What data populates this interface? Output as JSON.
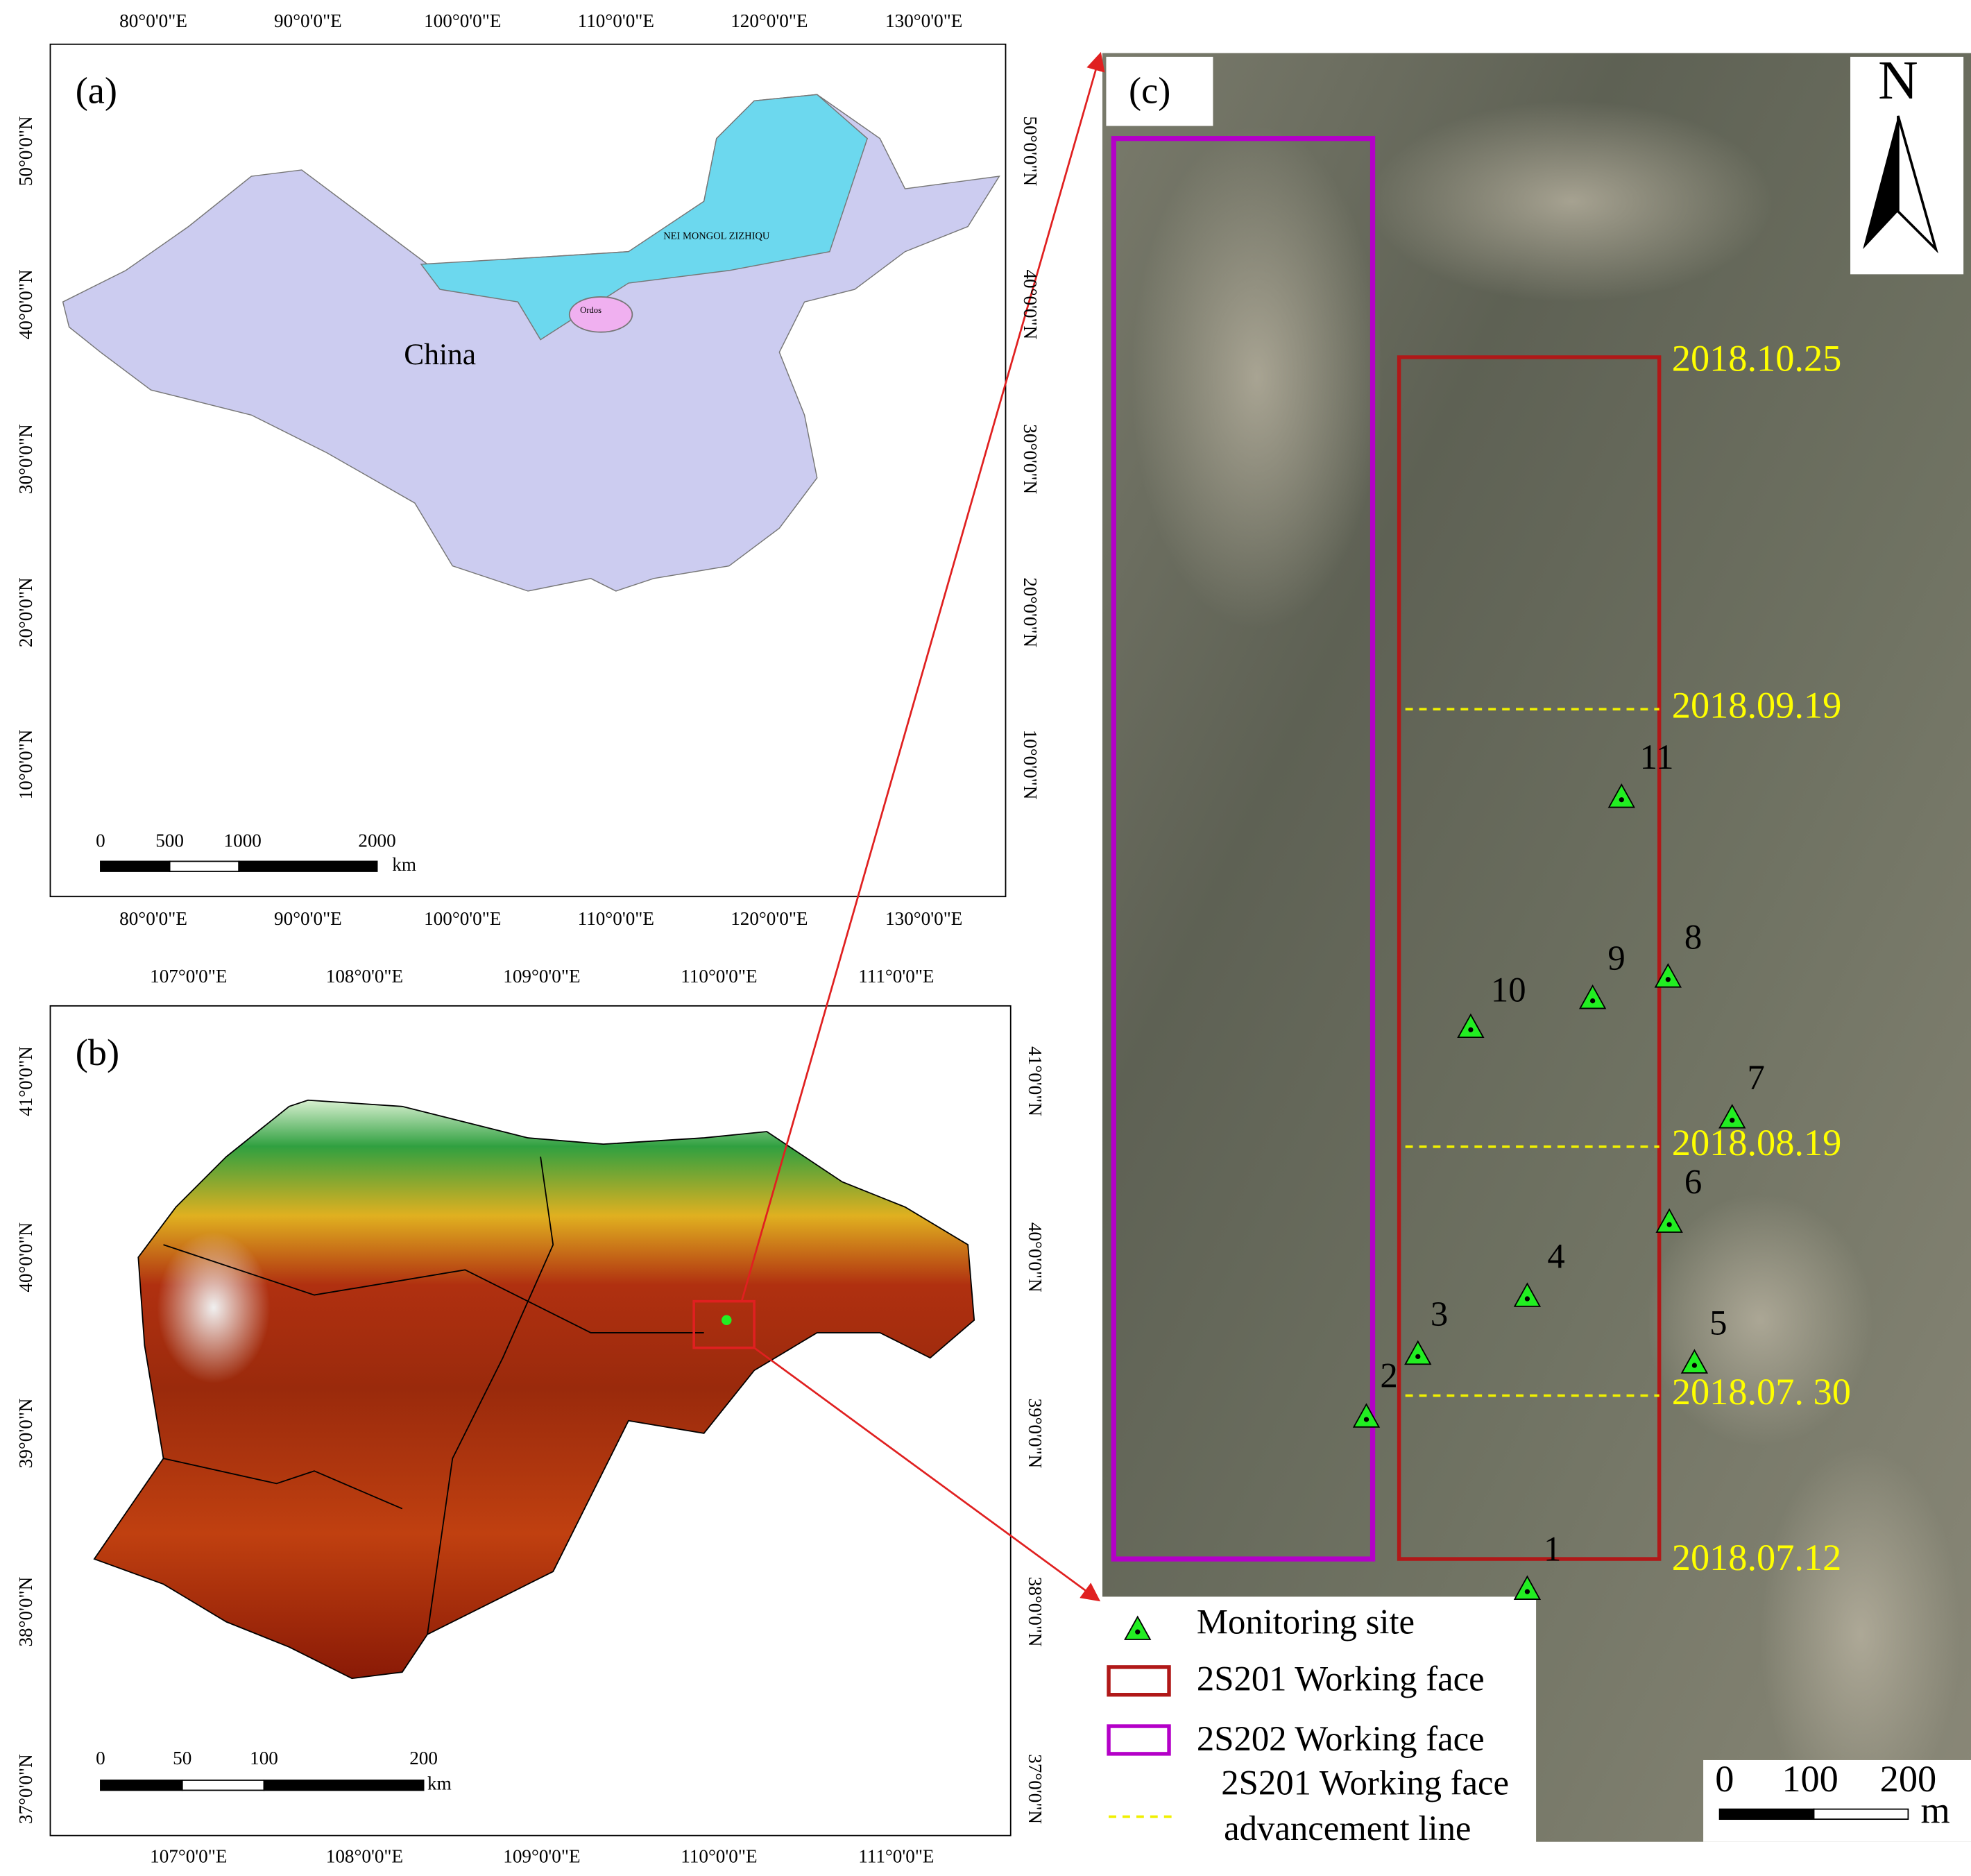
{
  "panel_a": {
    "label": "(a)",
    "lon_labels": [
      "80°0'0\"E",
      "90°0'0\"E",
      "100°0'0\"E",
      "110°0'0\"E",
      "120°0'0\"E",
      "130°0'0\"E"
    ],
    "lat_labels": [
      "50°0'0\"N",
      "40°0'0\"N",
      "30°0'0\"N",
      "20°0'0\"N",
      "10°0'0\"N"
    ],
    "places": {
      "country": "China",
      "region": "NEI MONGOL ZIZHIQU",
      "city": "Ordos"
    },
    "scale_bar": {
      "labels": [
        "0",
        "500",
        "1000",
        "2000"
      ],
      "unit": "km"
    }
  },
  "panel_b": {
    "label": "(b)",
    "lon_labels": [
      "107°0'0\"E",
      "108°0'0\"E",
      "109°0'0\"E",
      "110°0'0\"E",
      "111°0'0\"E"
    ],
    "lat_labels": [
      "41°0'0\"N",
      "40°0'0\"N",
      "39°0'0\"N",
      "38°0'0\"N",
      "37°0'0\"N"
    ],
    "scale_bar": {
      "labels": [
        "0",
        "50",
        "100",
        "200"
      ],
      "unit": "km"
    }
  },
  "panel_c": {
    "label": "(c)",
    "north": "N",
    "sites": [
      "1",
      "2",
      "3",
      "4",
      "5",
      "6",
      "7",
      "8",
      "9",
      "10",
      "11"
    ],
    "advancement_dates": [
      "2018.10.25",
      "2018.09.19",
      "2018.08.19",
      "2018.07. 30",
      "2018.07.12"
    ],
    "scale_bar": {
      "labels": [
        "0",
        "100",
        "200"
      ],
      "unit": "m"
    },
    "legend": [
      "Monitoring site",
      "2S201 Working face",
      "2S202 Working face"
    ],
    "legend_line": [
      "2S201 Working face",
      "advancement line"
    ]
  }
}
